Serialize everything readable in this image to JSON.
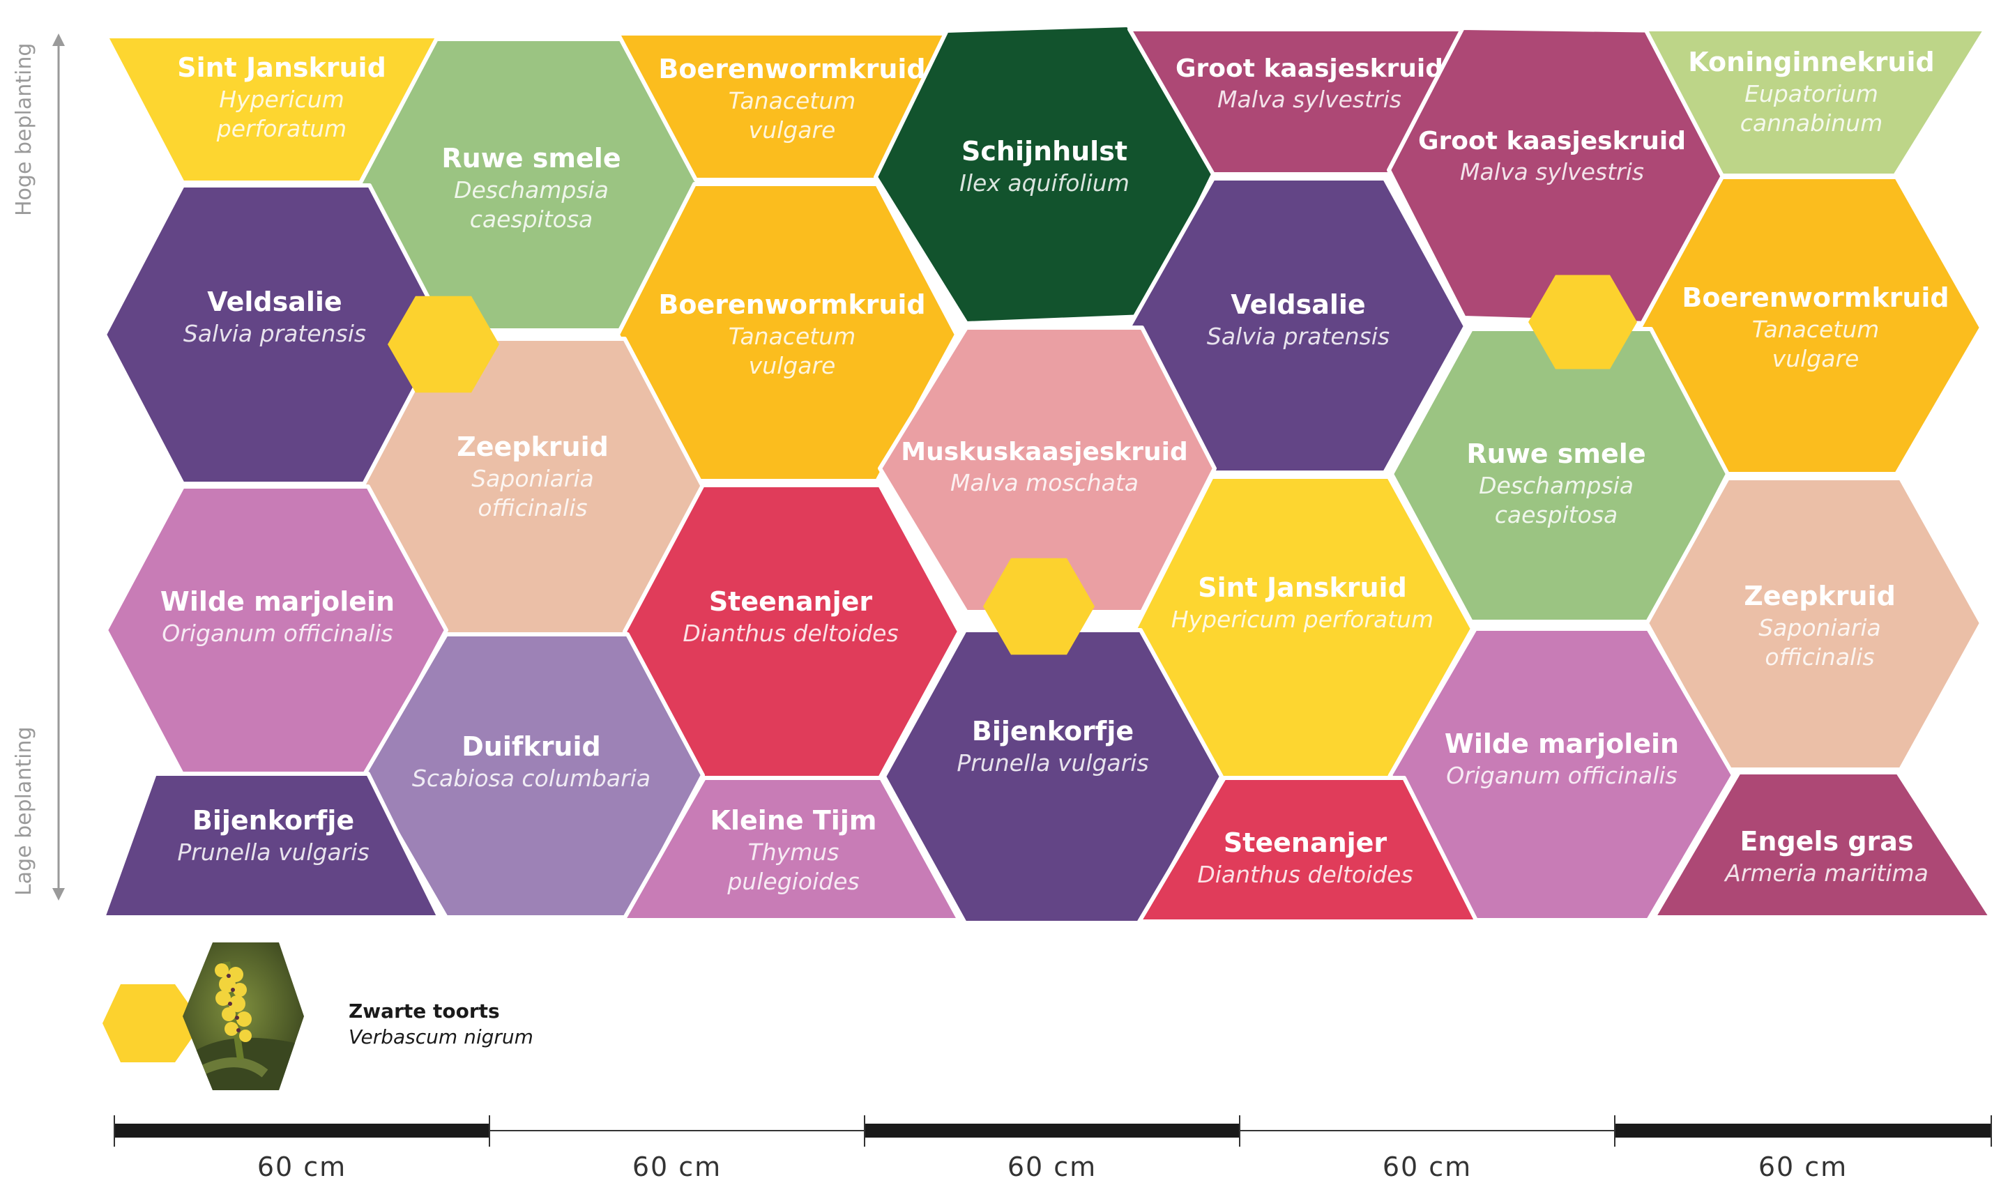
{
  "colors": {
    "yellow": "#fdd630",
    "orange": "#fbbd1e",
    "purple": "#634586",
    "lightgreen": "#9bc482",
    "darkgreen": "#12532d",
    "peach": "#ebbfa7",
    "pink": "#ea9fa3",
    "red": "#e03c5a",
    "mauve": "#ad4875",
    "lilac": "#c87cb6",
    "lavender": "#9d82b6",
    "olive": "#bdd588",
    "bee": "#fcd22e"
  },
  "axis": {
    "top_label": "Hoge beplanting",
    "bottom_label": "Lage beplanting"
  },
  "cells": [
    {
      "id": "c1",
      "color": "yellow",
      "name": "Sint Janskruid",
      "sci": [
        "Hypericum",
        "perforatum"
      ]
    },
    {
      "id": "c2",
      "color": "lightgreen",
      "name": "Ruwe smele",
      "sci": [
        "Deschampsia",
        "caespitosa"
      ]
    },
    {
      "id": "c3",
      "color": "orange",
      "name": "Boerenwormkruid",
      "sci": [
        "Tanacetum",
        "vulgare"
      ]
    },
    {
      "id": "c4",
      "color": "darkgreen",
      "name": "Schijnhulst",
      "sci": [
        "Ilex aquifolium"
      ]
    },
    {
      "id": "c5",
      "color": "mauve",
      "name": "Groot kaasjeskruid",
      "sci": [
        "Malva sylvestris"
      ]
    },
    {
      "id": "c6",
      "color": "mauve",
      "name": "Groot kaasjeskruid",
      "sci": [
        "Malva sylvestris"
      ]
    },
    {
      "id": "c7",
      "color": "olive",
      "name": "Koninginnekruid",
      "sci": [
        "Eupatorium",
        "cannabinum"
      ]
    },
    {
      "id": "c8",
      "color": "purple",
      "name": "Veldsalie",
      "sci": [
        "Salvia pratensis"
      ]
    },
    {
      "id": "c9",
      "color": "orange",
      "name": "Boerenwormkruid",
      "sci": [
        "Tanacetum",
        "vulgare"
      ]
    },
    {
      "id": "c10",
      "color": "purple",
      "name": "Veldsalie",
      "sci": [
        "Salvia pratensis"
      ]
    },
    {
      "id": "c11",
      "color": "orange",
      "name": "Boerenwormkruid",
      "sci": [
        "Tanacetum",
        "vulgare"
      ]
    },
    {
      "id": "c12",
      "color": "peach",
      "name": "Zeepkruid",
      "sci": [
        "Saponiaria",
        "officinalis"
      ]
    },
    {
      "id": "c13",
      "color": "pink",
      "name": "Muskuskaasjeskruid",
      "sci": [
        "Malva moschata"
      ]
    },
    {
      "id": "c14",
      "color": "lightgreen",
      "name": "Ruwe smele",
      "sci": [
        "Deschampsia",
        "caespitosa"
      ]
    },
    {
      "id": "c15",
      "color": "lilac",
      "name": "Wilde marjolein",
      "sci": [
        "Origanum officinalis"
      ]
    },
    {
      "id": "c16",
      "color": "red",
      "name": "Steenanjer",
      "sci": [
        "Dianthus deltoides"
      ]
    },
    {
      "id": "c17",
      "color": "yellow",
      "name": "Sint Janskruid",
      "sci": [
        "Hypericum perforatum"
      ]
    },
    {
      "id": "c18",
      "color": "peach",
      "name": "Zeepkruid",
      "sci": [
        "Saponiaria",
        "officinalis"
      ]
    },
    {
      "id": "c19",
      "color": "lavender",
      "name": "Duifkruid",
      "sci": [
        "Scabiosa columbaria"
      ]
    },
    {
      "id": "c20",
      "color": "purple",
      "name": "Bijenkorfje",
      "sci": [
        "Prunella vulgaris"
      ]
    },
    {
      "id": "c21",
      "color": "lilac",
      "name": "Wilde marjolein",
      "sci": [
        "Origanum officinalis"
      ]
    },
    {
      "id": "c22",
      "color": "purple",
      "name": "Bijenkorfje",
      "sci": [
        "Prunella vulgaris"
      ]
    },
    {
      "id": "c23",
      "color": "lilac",
      "name": "Kleine Tijm",
      "sci": [
        "Thymus",
        "pulegioides"
      ]
    },
    {
      "id": "c24",
      "color": "red",
      "name": "Steenanjer",
      "sci": [
        "Dianthus deltoides"
      ]
    },
    {
      "id": "c25",
      "color": "mauve",
      "name": "Engels gras",
      "sci": [
        "Armeria maritima"
      ]
    }
  ],
  "legend": {
    "name": "Zwarte toorts",
    "sci": "Verbascum nigrum"
  },
  "scale": {
    "segments": [
      "60 cm",
      "60 cm",
      "60 cm",
      "60 cm",
      "60 cm"
    ]
  }
}
